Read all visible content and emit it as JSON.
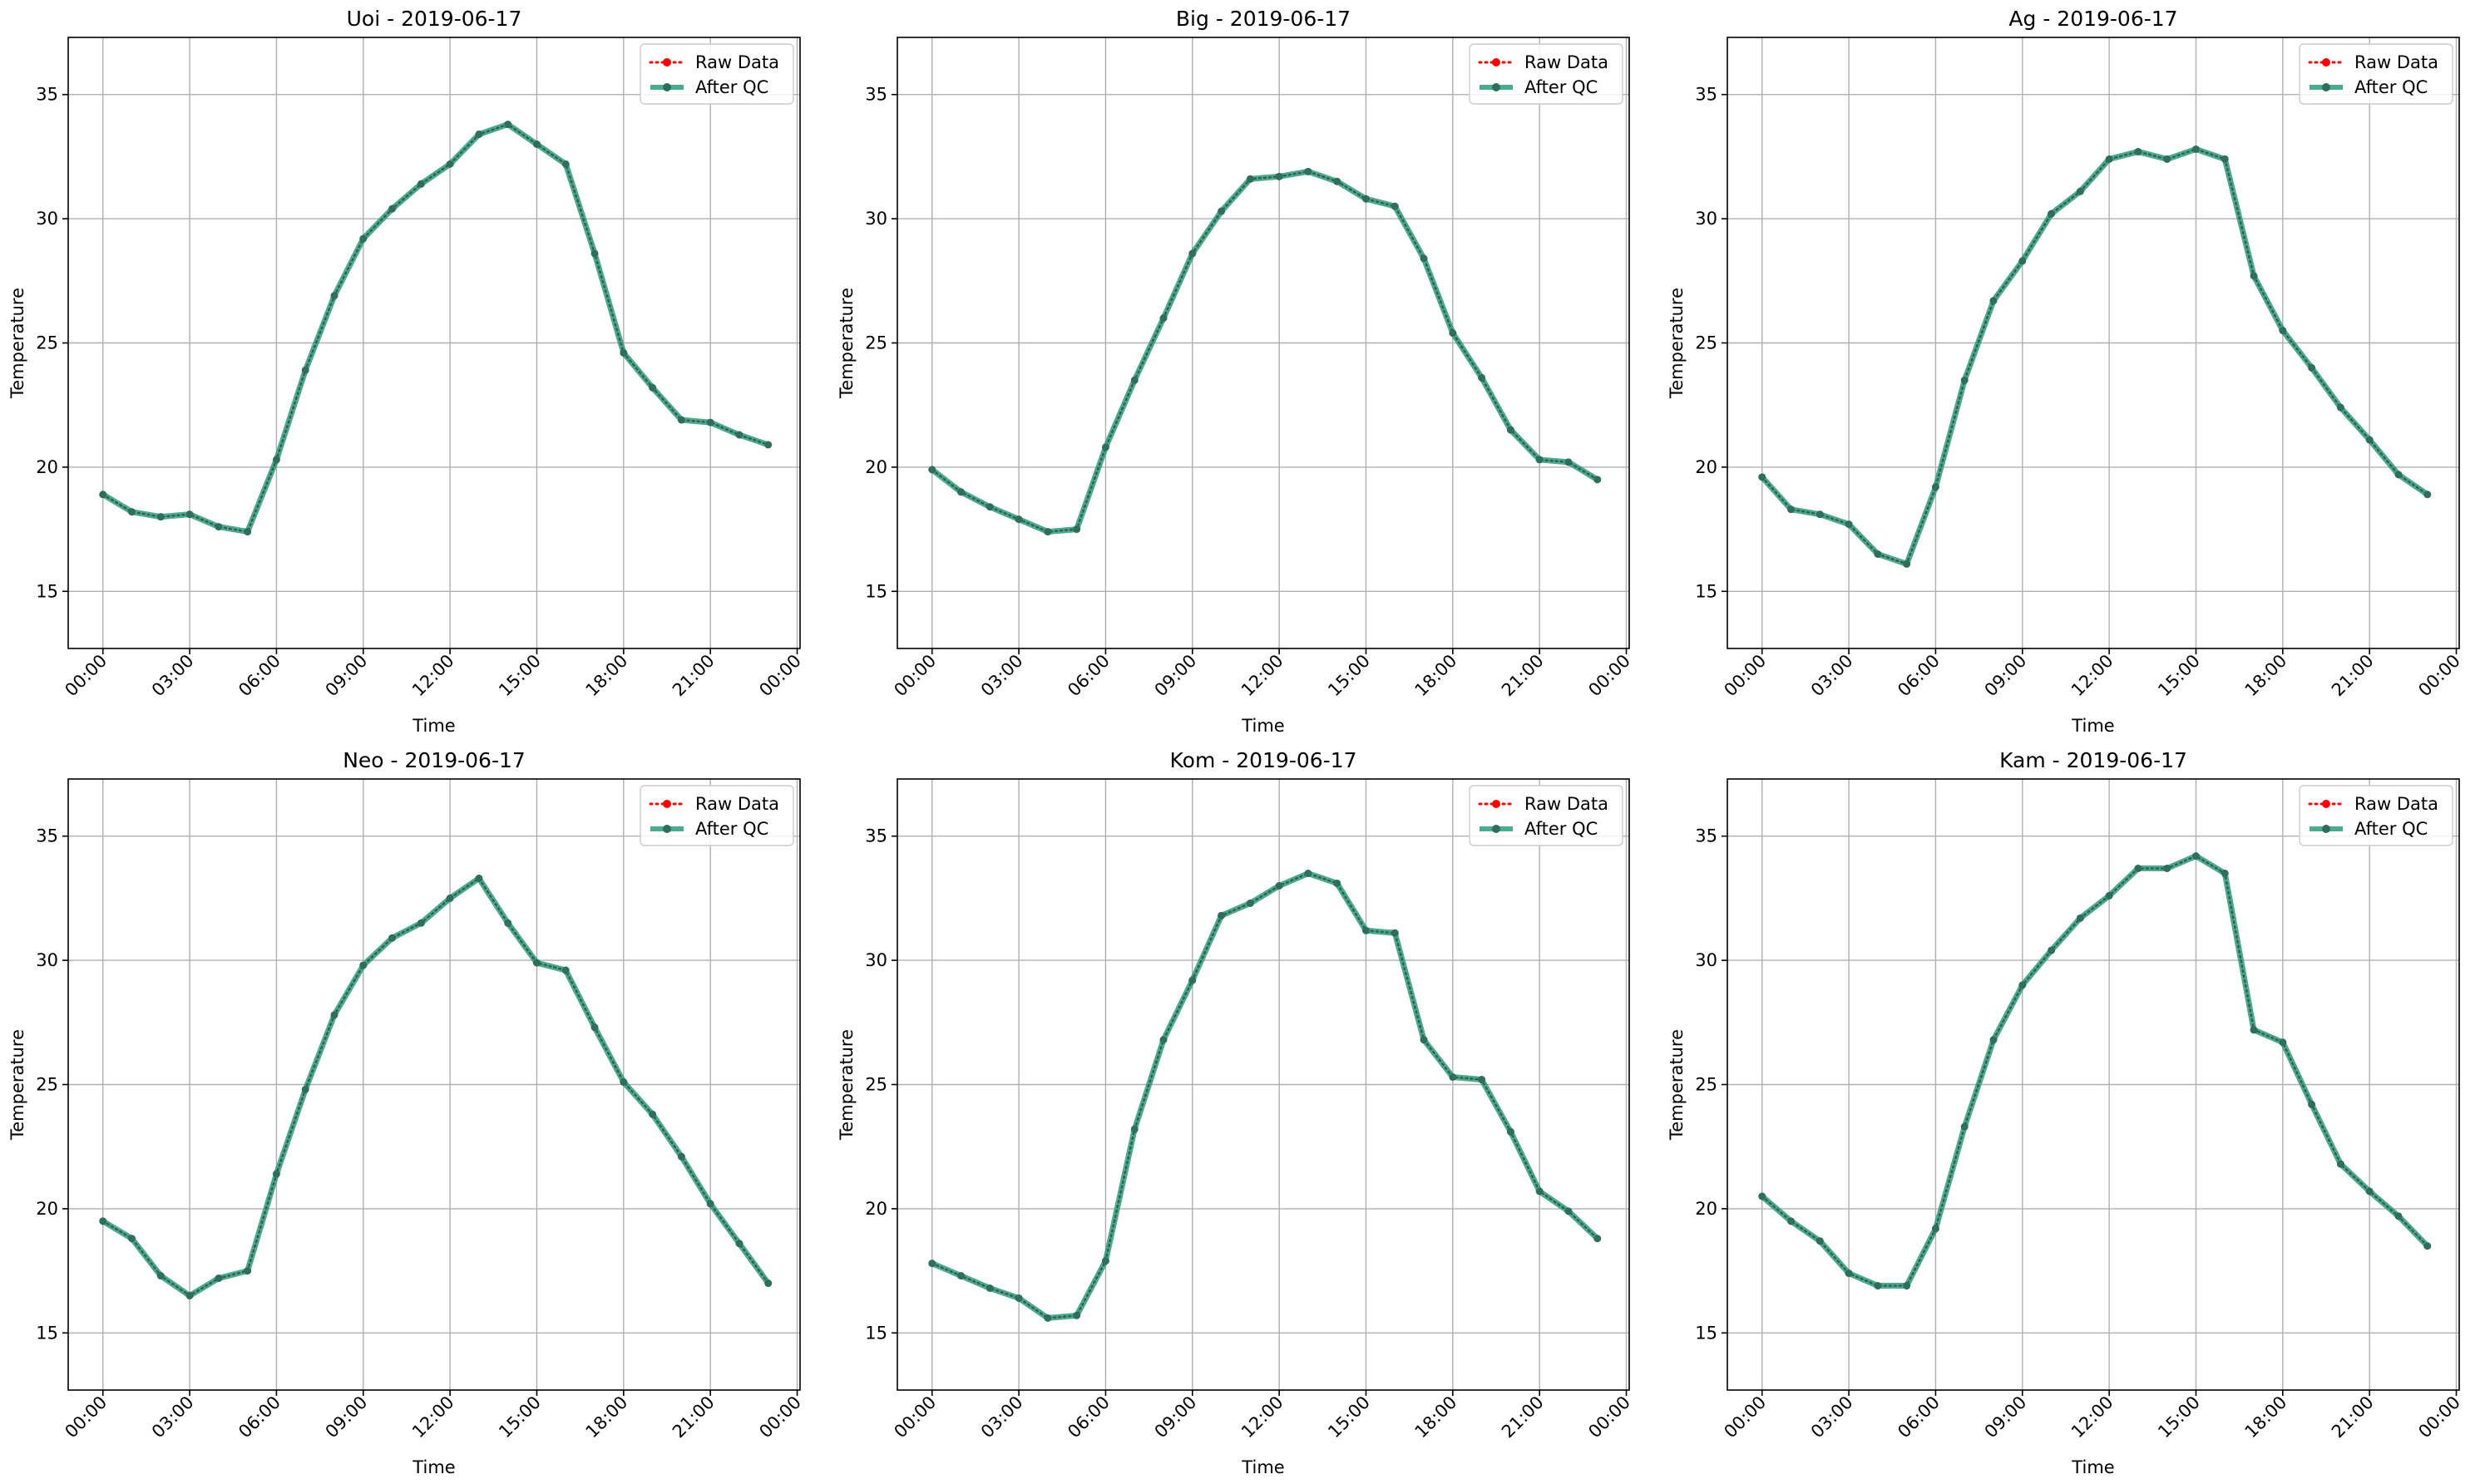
{
  "figure": {
    "colors": {
      "raw": "#ff0000",
      "qc": "#2a9d7b",
      "qc_marker": "#2f6e5c",
      "raw_overlay": "#3d5c50",
      "grid": "#b0b0b0",
      "axis": "#000000"
    }
  },
  "chart_data": [
    {
      "type": "line",
      "title": "Uoi - 2019-06-17",
      "xlabel": "Time",
      "ylabel": "Temperature",
      "x_ticks": [
        "00:00",
        "03:00",
        "06:00",
        "09:00",
        "12:00",
        "15:00",
        "18:00",
        "21:00",
        "00:00"
      ],
      "y_ticks": [
        15,
        20,
        25,
        30,
        35
      ],
      "xlim_hours": [
        -1.2,
        24.1
      ],
      "ylim": [
        12.7,
        37.3
      ],
      "grid": true,
      "legend_position": "top-right",
      "x_hours": [
        0,
        1,
        2,
        3,
        4,
        5,
        6,
        7,
        8,
        9,
        10,
        11,
        12,
        13,
        14,
        15,
        16,
        17,
        18,
        19,
        20,
        21,
        22,
        23
      ],
      "series": [
        {
          "name": "Raw Data",
          "style": "dotted",
          "values": [
            18.9,
            18.2,
            18.0,
            18.1,
            17.6,
            17.4,
            20.3,
            23.9,
            26.9,
            29.2,
            30.4,
            31.4,
            32.2,
            33.4,
            33.8,
            33.0,
            32.2,
            28.6,
            24.6,
            23.2,
            21.9,
            21.8,
            21.3,
            20.9
          ]
        },
        {
          "name": "After QC",
          "style": "solid",
          "values": [
            18.9,
            18.2,
            18.0,
            18.1,
            17.6,
            17.4,
            20.3,
            23.9,
            26.9,
            29.2,
            30.4,
            31.4,
            32.2,
            33.4,
            33.8,
            33.0,
            32.2,
            28.6,
            24.6,
            23.2,
            21.9,
            21.8,
            21.3,
            20.9
          ]
        }
      ]
    },
    {
      "type": "line",
      "title": "Big - 2019-06-17",
      "xlabel": "Time",
      "ylabel": "Temperature",
      "x_ticks": [
        "00:00",
        "03:00",
        "06:00",
        "09:00",
        "12:00",
        "15:00",
        "18:00",
        "21:00",
        "00:00"
      ],
      "y_ticks": [
        15,
        20,
        25,
        30,
        35
      ],
      "xlim_hours": [
        -1.2,
        24.1
      ],
      "ylim": [
        12.7,
        37.3
      ],
      "grid": true,
      "legend_position": "top-right",
      "x_hours": [
        0,
        1,
        2,
        3,
        4,
        5,
        6,
        7,
        8,
        9,
        10,
        11,
        12,
        13,
        14,
        15,
        16,
        17,
        18,
        19,
        20,
        21,
        22,
        23
      ],
      "series": [
        {
          "name": "Raw Data",
          "style": "dotted",
          "values": [
            19.9,
            19.0,
            18.4,
            17.9,
            17.4,
            17.5,
            20.8,
            23.5,
            26.0,
            28.6,
            30.3,
            31.6,
            31.7,
            31.9,
            31.5,
            30.8,
            30.5,
            28.4,
            25.4,
            23.6,
            21.5,
            20.3,
            20.2,
            19.5
          ]
        },
        {
          "name": "After QC",
          "style": "solid",
          "values": [
            19.9,
            19.0,
            18.4,
            17.9,
            17.4,
            17.5,
            20.8,
            23.5,
            26.0,
            28.6,
            30.3,
            31.6,
            31.7,
            31.9,
            31.5,
            30.8,
            30.5,
            28.4,
            25.4,
            23.6,
            21.5,
            20.3,
            20.2,
            19.5
          ]
        }
      ]
    },
    {
      "type": "line",
      "title": "Ag - 2019-06-17",
      "xlabel": "Time",
      "ylabel": "Temperature",
      "x_ticks": [
        "00:00",
        "03:00",
        "06:00",
        "09:00",
        "12:00",
        "15:00",
        "18:00",
        "21:00",
        "00:00"
      ],
      "y_ticks": [
        15,
        20,
        25,
        30,
        35
      ],
      "xlim_hours": [
        -1.2,
        24.1
      ],
      "ylim": [
        12.7,
        37.3
      ],
      "grid": true,
      "legend_position": "top-right",
      "x_hours": [
        0,
        1,
        2,
        3,
        4,
        5,
        6,
        7,
        8,
        9,
        10,
        11,
        12,
        13,
        14,
        15,
        16,
        17,
        18,
        19,
        20,
        21,
        22,
        23
      ],
      "series": [
        {
          "name": "Raw Data",
          "style": "dotted",
          "values": [
            19.6,
            18.3,
            18.1,
            17.7,
            16.5,
            16.1,
            19.2,
            23.5,
            26.7,
            28.3,
            30.2,
            31.1,
            32.4,
            32.7,
            32.4,
            32.8,
            32.4,
            27.7,
            25.5,
            24.0,
            22.4,
            21.1,
            19.7,
            18.9
          ]
        },
        {
          "name": "After QC",
          "style": "solid",
          "values": [
            19.6,
            18.3,
            18.1,
            17.7,
            16.5,
            16.1,
            19.2,
            23.5,
            26.7,
            28.3,
            30.2,
            31.1,
            32.4,
            32.7,
            32.4,
            32.8,
            32.4,
            27.7,
            25.5,
            24.0,
            22.4,
            21.1,
            19.7,
            18.9
          ]
        }
      ]
    },
    {
      "type": "line",
      "title": "Neo - 2019-06-17",
      "xlabel": "Time",
      "ylabel": "Temperature",
      "x_ticks": [
        "00:00",
        "03:00",
        "06:00",
        "09:00",
        "12:00",
        "15:00",
        "18:00",
        "21:00",
        "00:00"
      ],
      "y_ticks": [
        15,
        20,
        25,
        30,
        35
      ],
      "xlim_hours": [
        -1.2,
        24.1
      ],
      "ylim": [
        12.7,
        37.3
      ],
      "grid": true,
      "legend_position": "top-right",
      "x_hours": [
        0,
        1,
        2,
        3,
        4,
        5,
        6,
        7,
        8,
        9,
        10,
        11,
        12,
        13,
        14,
        15,
        16,
        17,
        18,
        19,
        20,
        21,
        22,
        23
      ],
      "series": [
        {
          "name": "Raw Data",
          "style": "dotted",
          "values": [
            19.5,
            18.8,
            17.3,
            16.5,
            17.2,
            17.5,
            21.4,
            24.8,
            27.8,
            29.8,
            30.9,
            31.5,
            32.5,
            33.3,
            31.5,
            29.9,
            29.6,
            27.3,
            25.1,
            23.8,
            22.1,
            20.2,
            18.6,
            17.0
          ]
        },
        {
          "name": "After QC",
          "style": "solid",
          "values": [
            19.5,
            18.8,
            17.3,
            16.5,
            17.2,
            17.5,
            21.4,
            24.8,
            27.8,
            29.8,
            30.9,
            31.5,
            32.5,
            33.3,
            31.5,
            29.9,
            29.6,
            27.3,
            25.1,
            23.8,
            22.1,
            20.2,
            18.6,
            17.0
          ]
        }
      ]
    },
    {
      "type": "line",
      "title": "Kom - 2019-06-17",
      "xlabel": "Time",
      "ylabel": "Temperature",
      "x_ticks": [
        "00:00",
        "03:00",
        "06:00",
        "09:00",
        "12:00",
        "15:00",
        "18:00",
        "21:00",
        "00:00"
      ],
      "y_ticks": [
        15,
        20,
        25,
        30,
        35
      ],
      "xlim_hours": [
        -1.2,
        24.1
      ],
      "ylim": [
        12.7,
        37.3
      ],
      "grid": true,
      "legend_position": "top-right",
      "x_hours": [
        0,
        1,
        2,
        3,
        4,
        5,
        6,
        7,
        8,
        9,
        10,
        11,
        12,
        13,
        14,
        15,
        16,
        17,
        18,
        19,
        20,
        21,
        22,
        23
      ],
      "series": [
        {
          "name": "Raw Data",
          "style": "dotted",
          "values": [
            17.8,
            17.3,
            16.8,
            16.4,
            15.6,
            15.7,
            17.9,
            23.2,
            26.8,
            29.2,
            31.8,
            32.3,
            33.0,
            33.5,
            33.1,
            31.2,
            31.1,
            26.8,
            25.3,
            25.2,
            23.1,
            20.7,
            19.9,
            18.8
          ]
        },
        {
          "name": "After QC",
          "style": "solid",
          "values": [
            17.8,
            17.3,
            16.8,
            16.4,
            15.6,
            15.7,
            17.9,
            23.2,
            26.8,
            29.2,
            31.8,
            32.3,
            33.0,
            33.5,
            33.1,
            31.2,
            31.1,
            26.8,
            25.3,
            25.2,
            23.1,
            20.7,
            19.9,
            18.8
          ]
        }
      ]
    },
    {
      "type": "line",
      "title": "Kam - 2019-06-17",
      "xlabel": "Time",
      "ylabel": "Temperature",
      "x_ticks": [
        "00:00",
        "03:00",
        "06:00",
        "09:00",
        "12:00",
        "15:00",
        "18:00",
        "21:00",
        "00:00"
      ],
      "y_ticks": [
        15,
        20,
        25,
        30,
        35
      ],
      "xlim_hours": [
        -1.2,
        24.1
      ],
      "ylim": [
        12.7,
        37.3
      ],
      "grid": true,
      "legend_position": "top-right",
      "x_hours": [
        0,
        1,
        2,
        3,
        4,
        5,
        6,
        7,
        8,
        9,
        10,
        11,
        12,
        13,
        14,
        15,
        16,
        17,
        18,
        19,
        20,
        21,
        22,
        23
      ],
      "series": [
        {
          "name": "Raw Data",
          "style": "dotted",
          "values": [
            20.5,
            19.5,
            18.7,
            17.4,
            16.9,
            16.9,
            19.2,
            23.3,
            26.8,
            29.0,
            30.4,
            31.7,
            32.6,
            33.7,
            33.7,
            34.2,
            33.5,
            27.2,
            26.7,
            24.2,
            21.8,
            20.7,
            19.7,
            18.5
          ]
        },
        {
          "name": "After QC",
          "style": "solid",
          "values": [
            20.5,
            19.5,
            18.7,
            17.4,
            16.9,
            16.9,
            19.2,
            23.3,
            26.8,
            29.0,
            30.4,
            31.7,
            32.6,
            33.7,
            33.7,
            34.2,
            33.5,
            27.2,
            26.7,
            24.2,
            21.8,
            20.7,
            19.7,
            18.5
          ]
        }
      ]
    }
  ]
}
